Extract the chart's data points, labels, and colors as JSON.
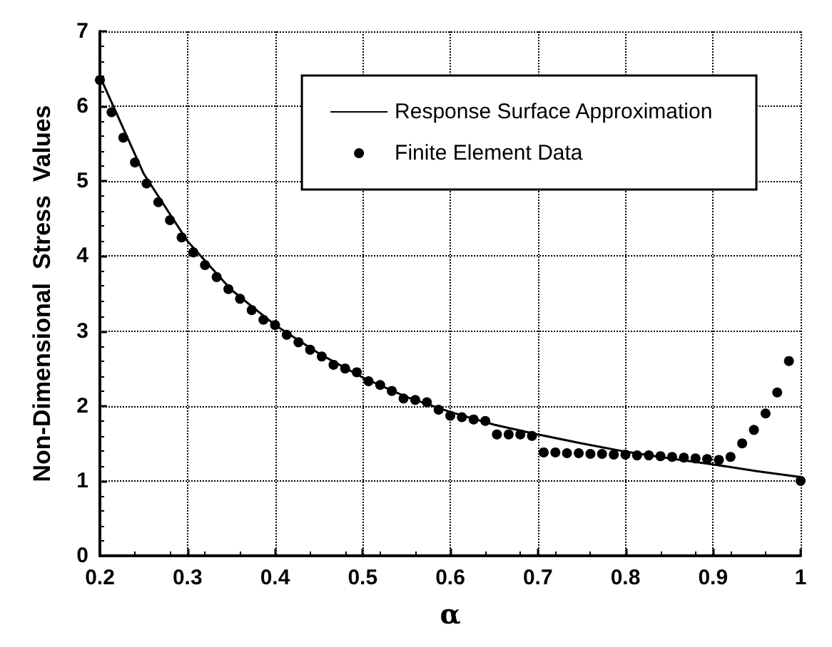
{
  "chart_data": {
    "type": "scatter",
    "xlabel": "α",
    "ylabel": "Non-Dimensional  Stress  Values",
    "xlim": [
      0.2,
      1
    ],
    "ylim": [
      0,
      7
    ],
    "xticks": [
      0.2,
      0.3,
      0.4,
      0.5,
      0.6,
      0.7,
      0.8,
      0.9,
      1
    ],
    "yticks": [
      0,
      1,
      2,
      3,
      4,
      5,
      6,
      7
    ],
    "grid": true,
    "legend": "top right",
    "series": [
      {
        "name": "Response Surface Approximation",
        "type": "line",
        "color": "#000000",
        "marker": "none",
        "line_style": "solid",
        "x": [
          0.2,
          0.25,
          0.3,
          0.35,
          0.4,
          0.45,
          0.5,
          0.55,
          0.6,
          0.65,
          0.7,
          0.75,
          0.8,
          0.85,
          0.9,
          0.95,
          1.0
        ],
        "values": [
          6.4,
          5.1,
          4.2,
          3.55,
          3.08,
          2.7,
          2.38,
          2.12,
          1.92,
          1.75,
          1.62,
          1.5,
          1.39,
          1.3,
          1.22,
          1.13,
          1.05
        ]
      },
      {
        "name": "Finite Element Data",
        "color": "#000000",
        "marker": "circle",
        "x": [
          0.2,
          0.2133,
          0.2267,
          0.24,
          0.2533,
          0.2667,
          0.28,
          0.2933,
          0.3067,
          0.32,
          0.3333,
          0.3467,
          0.36,
          0.3733,
          0.3867,
          0.4,
          0.4133,
          0.4267,
          0.44,
          0.4533,
          0.4667,
          0.48,
          0.4933,
          0.5067,
          0.52,
          0.5333,
          0.5467,
          0.56,
          0.5733,
          0.5867,
          0.6,
          0.6133,
          0.6267,
          0.64,
          0.6533,
          0.6667,
          0.68,
          0.6933,
          0.7067,
          0.72,
          0.7333,
          0.7467,
          0.76,
          0.7733,
          0.7867,
          0.8,
          0.8133,
          0.8267,
          0.84,
          0.8533,
          0.8667,
          0.88,
          0.8933,
          0.9067,
          0.92,
          0.9333,
          0.9467,
          0.96,
          0.9733,
          0.9867,
          1.0
        ],
        "values": [
          6.35,
          5.92,
          5.58,
          5.25,
          4.97,
          4.72,
          4.48,
          4.25,
          4.05,
          3.88,
          3.72,
          3.56,
          3.43,
          3.28,
          3.15,
          3.08,
          2.95,
          2.85,
          2.75,
          2.66,
          2.55,
          2.5,
          2.45,
          2.33,
          2.28,
          2.2,
          2.1,
          2.08,
          2.05,
          1.95,
          1.87,
          1.85,
          1.82,
          1.8,
          1.62,
          1.62,
          1.62,
          1.6,
          1.38,
          1.38,
          1.37,
          1.37,
          1.36,
          1.36,
          1.35,
          1.35,
          1.34,
          1.34,
          1.33,
          1.32,
          1.31,
          1.3,
          1.29,
          1.28,
          1.32,
          1.5,
          1.68,
          1.9,
          2.18,
          2.6,
          1.0
        ]
      }
    ]
  }
}
